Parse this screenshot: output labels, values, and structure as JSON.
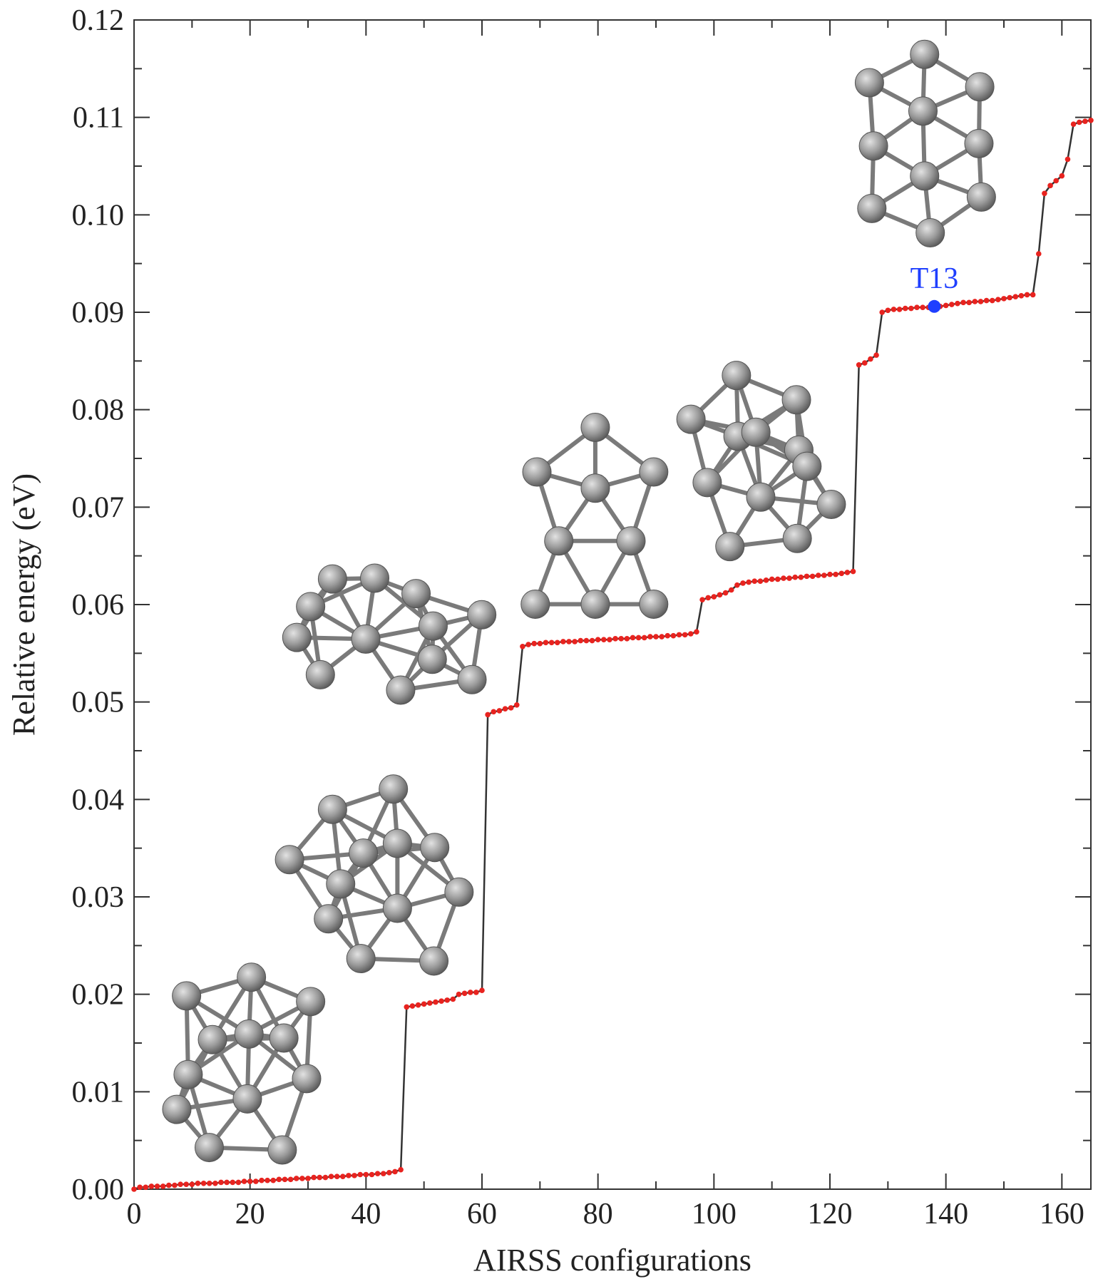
{
  "chart_data": {
    "type": "line",
    "x_label": "AIRSS configurations",
    "y_label": "Relative energy (eV)",
    "xlim": [
      0,
      165
    ],
    "ylim": [
      0,
      0.12
    ],
    "xticks": [
      0,
      20,
      40,
      60,
      80,
      100,
      120,
      140,
      160
    ],
    "yticks": [
      {
        "value": 0,
        "label": "0.00"
      },
      {
        "value": 0.01,
        "label": "0.01"
      },
      {
        "value": 0.02,
        "label": "0.02"
      },
      {
        "value": 0.03,
        "label": "0.03"
      },
      {
        "value": 0.04,
        "label": "0.04"
      },
      {
        "value": 0.05,
        "label": "0.05"
      },
      {
        "value": 0.06,
        "label": "0.06"
      },
      {
        "value": 0.07,
        "label": "0.07"
      },
      {
        "value": 0.08,
        "label": "0.08"
      },
      {
        "value": 0.09,
        "label": "0.09"
      },
      {
        "value": 0.1,
        "label": "0.10"
      },
      {
        "value": 0.11,
        "label": "0.11"
      },
      {
        "value": 0.12,
        "label": "0.12"
      }
    ],
    "x": [
      0,
      1,
      2,
      3,
      4,
      5,
      6,
      7,
      8,
      9,
      10,
      11,
      12,
      13,
      14,
      15,
      16,
      17,
      18,
      19,
      20,
      21,
      22,
      23,
      24,
      25,
      26,
      27,
      28,
      29,
      30,
      31,
      32,
      33,
      34,
      35,
      36,
      37,
      38,
      39,
      40,
      41,
      42,
      43,
      44,
      45,
      46,
      47,
      48,
      49,
      50,
      51,
      52,
      53,
      54,
      55,
      56,
      57,
      58,
      59,
      60,
      61,
      62,
      63,
      64,
      65,
      66,
      67,
      68,
      69,
      70,
      71,
      72,
      73,
      74,
      75,
      76,
      77,
      78,
      79,
      80,
      81,
      82,
      83,
      84,
      85,
      86,
      87,
      88,
      89,
      90,
      91,
      92,
      93,
      94,
      95,
      96,
      97,
      98,
      99,
      100,
      101,
      102,
      103,
      104,
      105,
      106,
      107,
      108,
      109,
      110,
      111,
      112,
      113,
      114,
      115,
      116,
      117,
      118,
      119,
      120,
      121,
      122,
      123,
      124,
      125,
      126,
      127,
      128,
      129,
      130,
      131,
      132,
      133,
      134,
      135,
      136,
      137,
      138,
      139,
      140,
      141,
      142,
      143,
      144,
      145,
      146,
      147,
      148,
      149,
      150,
      151,
      152,
      153,
      154,
      155,
      156,
      157,
      158,
      159,
      160,
      161,
      162,
      163,
      164,
      165
    ],
    "series": [
      {
        "color": "#e8231f",
        "line_color": "#333333",
        "values": [
          0.0,
          0.0002,
          0.0002,
          0.0003,
          0.0003,
          0.0003,
          0.0004,
          0.0004,
          0.0005,
          0.0005,
          0.0005,
          0.0006,
          0.0006,
          0.0006,
          0.0006,
          0.0007,
          0.0007,
          0.0007,
          0.0007,
          0.0008,
          0.0008,
          0.0008,
          0.0009,
          0.0009,
          0.0009,
          0.001,
          0.001,
          0.001,
          0.0011,
          0.0011,
          0.0011,
          0.0012,
          0.0012,
          0.0012,
          0.0013,
          0.0013,
          0.0013,
          0.0014,
          0.0014,
          0.0015,
          0.0015,
          0.0015,
          0.0016,
          0.0016,
          0.0017,
          0.0018,
          0.002,
          0.0187,
          0.0188,
          0.0189,
          0.019,
          0.0191,
          0.0192,
          0.0193,
          0.0194,
          0.0195,
          0.02,
          0.0201,
          0.0202,
          0.0202,
          0.0204,
          0.0487,
          0.049,
          0.0491,
          0.0493,
          0.0494,
          0.0497,
          0.0557,
          0.0559,
          0.056,
          0.056,
          0.0561,
          0.0561,
          0.0561,
          0.0562,
          0.0562,
          0.0562,
          0.0563,
          0.0563,
          0.0563,
          0.0564,
          0.0564,
          0.0564,
          0.0565,
          0.0565,
          0.0565,
          0.0566,
          0.0566,
          0.0566,
          0.0567,
          0.0567,
          0.0567,
          0.0568,
          0.0568,
          0.0569,
          0.0569,
          0.057,
          0.0572,
          0.0605,
          0.0607,
          0.0608,
          0.061,
          0.0612,
          0.0615,
          0.062,
          0.0622,
          0.0623,
          0.0624,
          0.0624,
          0.0625,
          0.0626,
          0.0626,
          0.0627,
          0.0627,
          0.0628,
          0.0628,
          0.0629,
          0.0629,
          0.063,
          0.063,
          0.0631,
          0.0631,
          0.0632,
          0.0633,
          0.0634,
          0.0846,
          0.0848,
          0.0852,
          0.0856,
          0.09,
          0.0902,
          0.0903,
          0.0903,
          0.0904,
          0.0904,
          0.0905,
          0.0905,
          0.0905,
          0.0906,
          0.0906,
          0.0907,
          0.0908,
          0.0909,
          0.091,
          0.091,
          0.0911,
          0.0911,
          0.0912,
          0.0912,
          0.0913,
          0.0914,
          0.0915,
          0.0916,
          0.0917,
          0.0918,
          0.0918,
          0.096,
          0.1022,
          0.103,
          0.1035,
          0.104,
          0.1057,
          0.1093,
          0.1095,
          0.1096,
          0.1097
        ]
      }
    ],
    "annotations": [
      {
        "text": "T13",
        "x": 138,
        "y": 0.0906,
        "color": "#1f3fff"
      }
    ]
  }
}
